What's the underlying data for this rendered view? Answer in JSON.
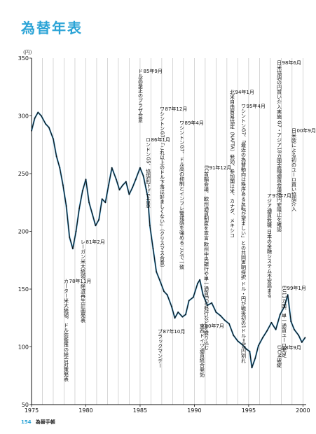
{
  "page_title": "為替年表",
  "unit_label": "(円)",
  "footer": {
    "page_number": "154",
    "book_title": "為替手帳"
  },
  "colors": {
    "accent": "#2aa3d6",
    "line": "#111111",
    "series": "#2a8fc8"
  },
  "chart_data": {
    "type": "line",
    "title": "",
    "xlabel": "",
    "ylabel": "(円)",
    "xlim": [
      1975,
      2000.3
    ],
    "ylim": [
      50,
      350
    ],
    "x_ticks": [
      1975,
      1980,
      1985,
      1990,
      1995,
      2000
    ],
    "x_tick_labels": [
      "1975",
      "1980",
      "1985",
      "1990",
      "1995",
      "2000"
    ],
    "y_ticks": [
      50,
      100,
      150,
      200,
      250,
      300,
      350
    ],
    "y_tick_labels": [
      "50",
      "100",
      "150",
      "200",
      "250",
      "300",
      "350"
    ],
    "grid": "vertical",
    "series": [
      {
        "x": [
          1975.0,
          1975.3,
          1975.6,
          1975.9,
          1976.3,
          1976.6,
          1977.0,
          1977.3,
          1977.6,
          1977.9,
          1978.2,
          1978.5,
          1978.8,
          1979.1,
          1979.4,
          1979.7,
          1980.0,
          1980.3,
          1980.6,
          1980.9,
          1981.2,
          1981.5,
          1981.8,
          1982.1,
          1982.4,
          1982.8,
          1983.1,
          1983.4,
          1983.7,
          1984.0,
          1984.3,
          1984.6,
          1985.0,
          1985.3,
          1985.7,
          1985.9,
          1986.2,
          1986.5,
          1986.8,
          1987.2,
          1987.5,
          1987.9,
          1988.2,
          1988.5,
          1988.9,
          1989.2,
          1989.5,
          1989.9,
          1990.3,
          1990.5,
          1990.8,
          1991.2,
          1991.6,
          1992.0,
          1992.4,
          1992.8,
          1993.2,
          1993.6,
          1994.0,
          1994.4,
          1994.8,
          1995.1,
          1995.3,
          1995.6,
          1995.9,
          1996.3,
          1996.7,
          1997.1,
          1997.5,
          1997.9,
          1998.3,
          1998.6,
          1998.9,
          1999.2,
          1999.6,
          1999.9,
          2000.2
        ],
        "y": [
          287,
          298,
          303,
          300,
          293,
          290,
          280,
          265,
          255,
          240,
          222,
          195,
          185,
          200,
          220,
          235,
          245,
          225,
          215,
          205,
          210,
          228,
          225,
          240,
          255,
          245,
          236,
          240,
          243,
          232,
          238,
          245,
          255,
          248,
          230,
          205,
          185,
          165,
          158,
          148,
          145,
          135,
          125,
          130,
          126,
          128,
          140,
          143,
          155,
          158,
          145,
          136,
          138,
          130,
          127,
          123,
          120,
          110,
          105,
          102,
          98,
          96,
          82,
          90,
          101,
          108,
          114,
          121,
          115,
          128,
          135,
          145,
          122,
          115,
          110,
          104,
          108
        ]
      }
    ]
  },
  "annotations": [
    {
      "date": "85年9月",
      "text": "ドル高是正のプラザ合意"
    },
    {
      "date": "86年1月",
      "text": "ロンドンG5、協調利下げで合意"
    },
    {
      "date": "87年12月",
      "text": "ワシントンG7、「これ以上のドル下落は好ましくない」（クリスマス合意）"
    },
    {
      "date": "89年4月",
      "text": "ワシントンG7、ドル高の抑制とインフレ警戒感を強めることで一致"
    },
    {
      "date": "91年12月",
      "text": "EC首脳会議、欧州通貨制度を宣言 欧州中央銀行や単一通貨ECU発行などを盛り込む"
    },
    {
      "date": "94年1月",
      "text": "北米自由貿易協定（NAFTA）発効、参加国は米、カナダ、メキシコ"
    },
    {
      "date": "95年4月",
      "text": "ワシントンG7、「最近の為替動向は秩序ある反転が望ましい」との共同声明採択 ドル・円が戦後初の1ドル=80円割れ"
    },
    {
      "date": "97年7月",
      "text": "アジア通貨危機 日本の金融システム不安高まる"
    },
    {
      "date": "98年6月",
      "text": "日米協調の円買い介入実施 G7・アジア18カ国金融通貨会議で円安阻止を確認"
    },
    {
      "date": "00年9月",
      "text": "日米欧による初のユーロ買い協調介入"
    },
    {
      "date": "99年1月",
      "text": "EU11カ国、単一通貨ユーロ発足"
    },
    {
      "date": "98年9月",
      "text": "LTCM破綻"
    },
    {
      "date": "90年7月",
      "text": "東西ドイツ通貨統合発効"
    },
    {
      "date": "87年10月",
      "text": "ブラックマンデー"
    },
    {
      "date": "81年2月",
      "text": "レーガン米大統領、経済再生計画発表"
    },
    {
      "date": "78年11月",
      "text": "カーター米大統領、ドル防衛策の総合対策発表"
    }
  ]
}
